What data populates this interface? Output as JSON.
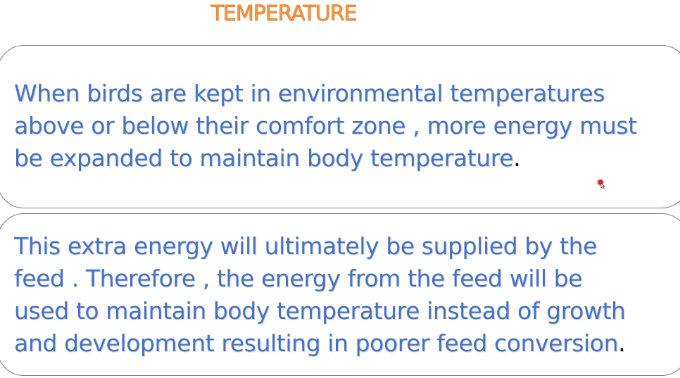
{
  "slide": {
    "title": "TEMPERATURE",
    "paragraph_1": {
      "lines": [
        "When birds are kept in environmental temperatures",
        "above or below their comfort zone , more energy must",
        "be expanded to maintain body temperature"
      ],
      "end_punctuation": "."
    },
    "paragraph_2": {
      "lines": [
        "This extra energy will ultimately be supplied by the",
        "feed . Therefore , the energy from the feed will be",
        "used to maintain body temperature instead of growth",
        "and development resulting in poorer feed conversion"
      ],
      "end_punctuation": "."
    }
  },
  "colors": {
    "title": "#f79646",
    "body_text": "#4472c4",
    "border": "#7f7f7f",
    "pointer": "#e02020"
  },
  "icons": {
    "pointer": "laser-pointer-cursor-icon"
  }
}
